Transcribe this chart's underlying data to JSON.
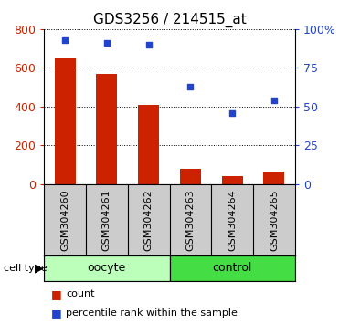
{
  "title": "GDS3256 / 214515_at",
  "samples": [
    "GSM304260",
    "GSM304261",
    "GSM304262",
    "GSM304263",
    "GSM304264",
    "GSM304265"
  ],
  "counts": [
    650,
    570,
    410,
    80,
    40,
    65
  ],
  "percentiles": [
    93,
    91,
    90,
    63,
    46,
    54
  ],
  "groups": [
    {
      "label": "oocyte",
      "start": 0,
      "end": 3,
      "color": "#bbffbb"
    },
    {
      "label": "control",
      "start": 3,
      "end": 6,
      "color": "#44dd44"
    }
  ],
  "left_ylim": [
    0,
    800
  ],
  "left_yticks": [
    0,
    200,
    400,
    600,
    800
  ],
  "right_ylim": [
    0,
    100
  ],
  "right_yticks": [
    0,
    25,
    50,
    75,
    100
  ],
  "right_yticklabels": [
    "0",
    "25",
    "50",
    "75",
    "100%"
  ],
  "bar_color": "#cc2200",
  "scatter_color": "#2244cc",
  "bar_width": 0.5,
  "title_fontsize": 11,
  "tick_label_color_left": "#cc2200",
  "tick_label_color_right": "#2244cc",
  "cell_type_label": "cell type",
  "legend_count_label": "count",
  "legend_percentile_label": "percentile rank within the sample",
  "tick_bg_color": "#cccccc",
  "label_fontsize": 8,
  "group_fontsize": 9
}
